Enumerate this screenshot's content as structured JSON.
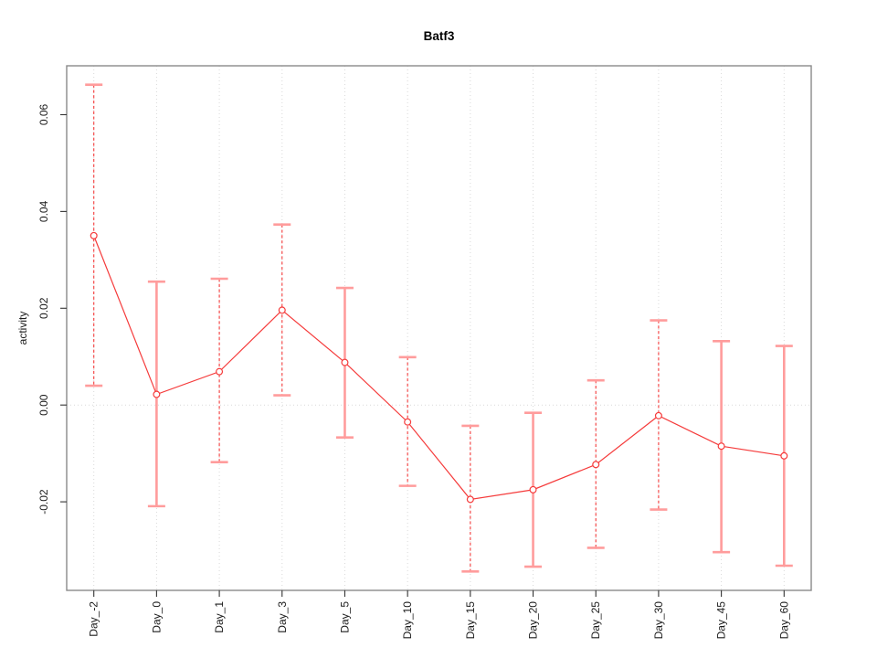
{
  "title": "Batf3",
  "chart_data": {
    "type": "line",
    "title": "Batf3",
    "ylabel": "activity",
    "xlabel": "",
    "categories": [
      "Day_-2",
      "Day_0",
      "Day_1",
      "Day_3",
      "Day_5",
      "Day_10",
      "Day_15",
      "Day_20",
      "Day_25",
      "Day_30",
      "Day_45",
      "Day_60"
    ],
    "series": [
      {
        "name": "activity",
        "values": [
          0.035,
          0.0022,
          0.0069,
          0.0196,
          0.0088,
          -0.0035,
          -0.0195,
          -0.0175,
          -0.0123,
          -0.0022,
          -0.0085,
          -0.0105
        ],
        "error_low": [
          0.004,
          -0.0209,
          -0.0118,
          0.002,
          -0.0067,
          -0.0167,
          -0.0344,
          -0.0334,
          -0.0295,
          -0.0216,
          -0.0304,
          -0.0332
        ],
        "error_high": [
          0.0662,
          0.0255,
          0.0261,
          0.0373,
          0.0242,
          0.0099,
          -0.0043,
          -0.0016,
          0.0051,
          0.0175,
          0.0132,
          0.0122
        ],
        "error_bar_line_styles": [
          "dashed",
          "solid",
          "dashed",
          "dashed",
          "solid",
          "dashed",
          "dashed",
          "solid",
          "dashed",
          "dashed",
          "solid",
          "solid"
        ]
      }
    ],
    "yticks": {
      "values": [
        0.06,
        0.04,
        0.02,
        0,
        -0.02
      ],
      "labels": [
        "0.06",
        "0.04",
        "0.02",
        "0.00",
        "-0.02"
      ]
    },
    "ylim": [
      -0.0383,
      0.0701
    ],
    "grid": {
      "vertical_at_categories": true,
      "horizontal_zero_line": true,
      "style": "dotted"
    },
    "legend": "none",
    "marker": "open-circle",
    "colors": {
      "line": "#f53b3b",
      "point": "#f53b3b",
      "error_bar_solid": "#ff9c9c",
      "error_bar_dashed": "#f53b3b",
      "error_cap": "#ff9c9c",
      "grid": "#d9d9d9",
      "frame": "#8a8a8a",
      "tick": "#333333",
      "text": "#1a1a1a",
      "title": "#000000",
      "background": "#ffffff"
    }
  }
}
